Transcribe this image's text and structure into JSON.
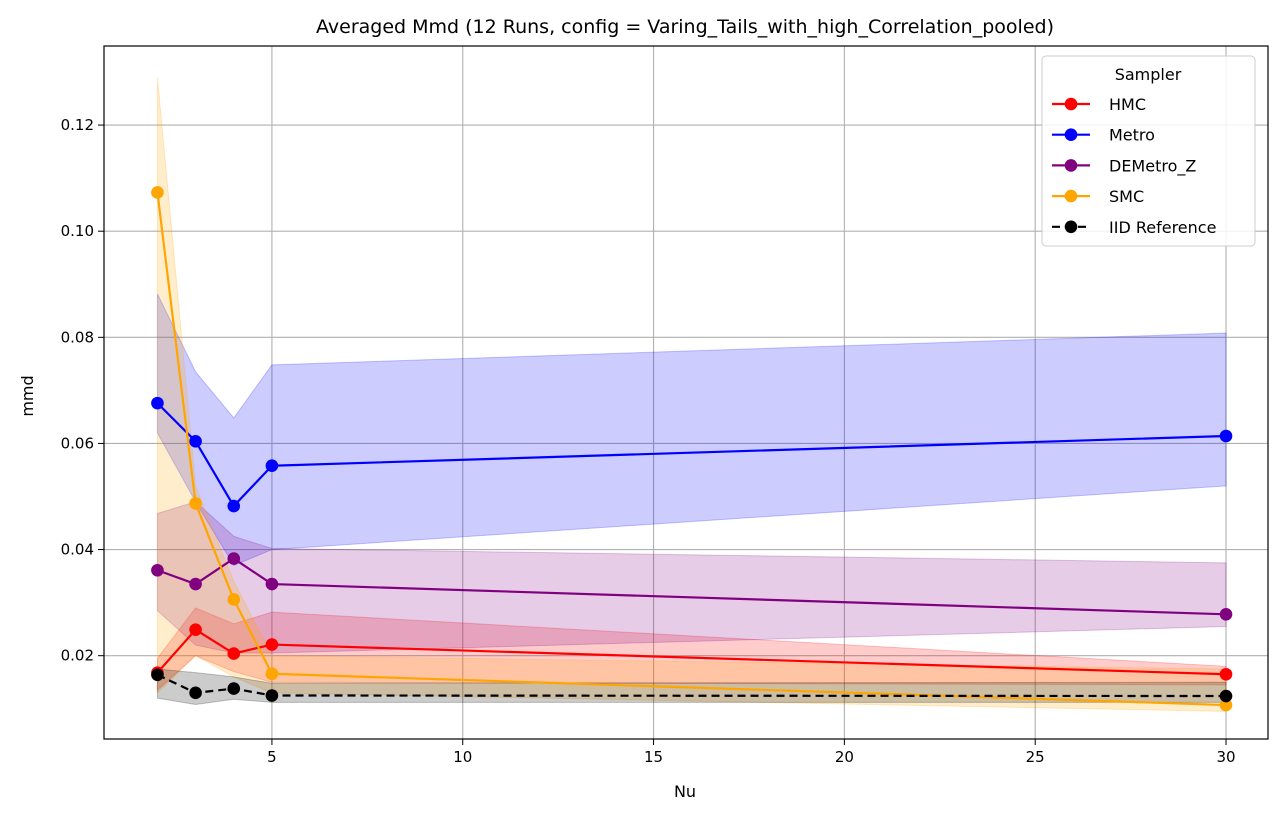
{
  "chart_data": {
    "type": "line",
    "title": "Averaged Mmd (12 Runs, config = Varing_Tails_with_high_Correlation_pooled)",
    "xlabel": "Nu",
    "ylabel": "mmd",
    "xlim": [
      0.6,
      31.1
    ],
    "ylim": [
      0.0043,
      0.1349
    ],
    "x_ticks": [
      5,
      10,
      15,
      20,
      25,
      30
    ],
    "x_tick_labels": [
      "5",
      "10",
      "15",
      "20",
      "25",
      "30"
    ],
    "y_ticks": [
      0.02,
      0.04,
      0.06,
      0.08,
      0.1,
      0.12
    ],
    "y_tick_labels": [
      "0.02",
      "0.04",
      "0.06",
      "0.08",
      "0.10",
      "0.12"
    ],
    "grid": true,
    "legend": {
      "title": "Sampler",
      "position": "top-right"
    },
    "x": [
      2,
      3,
      4,
      5,
      30
    ],
    "series": [
      {
        "name": "HMC",
        "color": "#ff0000",
        "dashed": false,
        "values": [
          0.0168,
          0.0249,
          0.0204,
          0.0221,
          0.0165
        ],
        "lower": [
          0.0135,
          0.02,
          0.017,
          0.015,
          0.0145
        ],
        "upper": [
          0.0195,
          0.029,
          0.026,
          0.0282,
          0.018
        ]
      },
      {
        "name": "Metro",
        "color": "#0000ff",
        "dashed": false,
        "values": [
          0.0676,
          0.0604,
          0.0482,
          0.0558,
          0.0614
        ],
        "lower": [
          0.062,
          0.049,
          0.037,
          0.04,
          0.052
        ],
        "upper": [
          0.0882,
          0.0735,
          0.0648,
          0.0748,
          0.0808
        ]
      },
      {
        "name": "DEMetro_Z",
        "color": "#800080",
        "dashed": false,
        "values": [
          0.0361,
          0.0335,
          0.0383,
          0.0335,
          0.0278
        ],
        "lower": [
          0.0285,
          0.022,
          0.0205,
          0.0205,
          0.0255
        ],
        "upper": [
          0.0468,
          0.049,
          0.0425,
          0.0402,
          0.0375
        ]
      },
      {
        "name": "SMC",
        "color": "#ffa500",
        "dashed": false,
        "values": [
          0.1073,
          0.0487,
          0.0306,
          0.0166,
          0.0107
        ],
        "lower": [
          0.013,
          0.02,
          0.016,
          0.013,
          0.0095
        ],
        "upper": [
          0.129,
          0.052,
          0.034,
          0.02,
          0.0175
        ]
      },
      {
        "name": "IID Reference",
        "color": "#000000",
        "dashed": true,
        "values": [
          0.0164,
          0.013,
          0.0138,
          0.0125,
          0.0124
        ],
        "lower": [
          0.012,
          0.0108,
          0.0118,
          0.0112,
          0.0112
        ],
        "upper": [
          0.0175,
          0.0168,
          0.016,
          0.0148,
          0.015
        ]
      }
    ]
  }
}
